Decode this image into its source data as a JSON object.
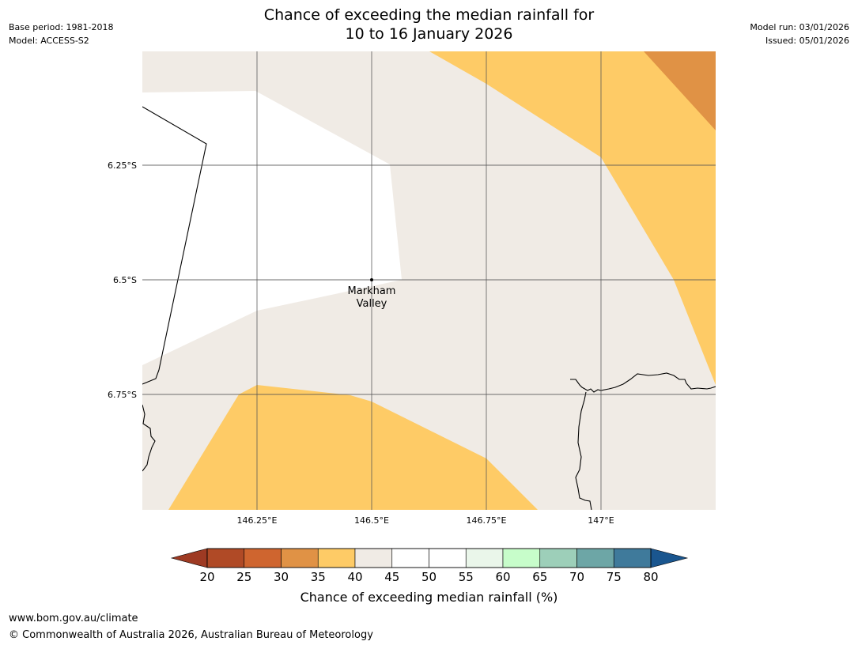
{
  "header": {
    "base_period": "Base period: 1981-2018",
    "model": "Model: ACCESS-S2",
    "model_run": "Model run: 03/01/2026",
    "issued": "Issued: 05/01/2026",
    "title_line1": "Chance of exceeding the median rainfall for",
    "title_line2": "10 to 16 January 2026"
  },
  "map": {
    "latitude_labels": [
      "6.25°S",
      "6.5°S",
      "6.75°S"
    ],
    "longitude_labels": [
      "146.25°E",
      "146.5°E",
      "146.75°E",
      "147°E"
    ],
    "place": {
      "name_line1": "Markham",
      "name_line2": "Valley",
      "lon": 146.5,
      "lat": -6.5
    },
    "colors": {
      "band_30_35": "#e09245",
      "band_35_40": "#fecb66",
      "band_40_45": "#f0ebe5",
      "band_45_55": "#ffffff",
      "grid": "#555555",
      "coastline": "#000000"
    }
  },
  "colorbar": {
    "title": "Chance of exceeding median rainfall (%)",
    "ticks": [
      "20",
      "25",
      "30",
      "35",
      "40",
      "45",
      "50",
      "55",
      "60",
      "65",
      "70",
      "75",
      "80"
    ],
    "under_color": "#9e3a23",
    "over_color": "#1a568f",
    "segment_colors": [
      "#b04a26",
      "#cf652f",
      "#e09245",
      "#fecb66",
      "#f0ebe5",
      "#ffffff",
      "#ffffff",
      "#eaf6ea",
      "#c7fdca",
      "#9dcfb9",
      "#6da6a6",
      "#3f7a9b"
    ]
  },
  "footer": {
    "url": "www.bom.gov.au/climate",
    "copyright": "© Commonwealth of Australia 2026, Australian Bureau of Meteorology"
  }
}
